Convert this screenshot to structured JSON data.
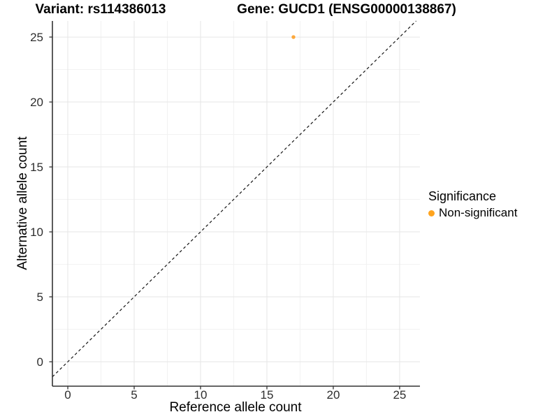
{
  "chart_data": {
    "type": "scatter",
    "titles": {
      "variant": "Variant: rs114386013",
      "gene": "Gene: GUCD1 (ENSG00000138867)"
    },
    "xlabel": "Reference allele count",
    "ylabel": "Alternative allele count",
    "x_ticks": [
      0,
      5,
      10,
      15,
      20,
      25
    ],
    "y_ticks": [
      0,
      5,
      10,
      15,
      20,
      25
    ],
    "x_minor_ticks": [
      2.5,
      7.5,
      12.5,
      17.5,
      22.5
    ],
    "y_minor_ticks": [
      2.5,
      7.5,
      12.5,
      17.5,
      22.5
    ],
    "xlim": [
      -1.16,
      26.53
    ],
    "ylim": [
      -1.88,
      26.24
    ],
    "grid": "major-and-minor",
    "points": [
      {
        "x": 17,
        "y": 25,
        "series": "Non-significant"
      }
    ],
    "reference_line": {
      "kind": "identity-diagonal",
      "style": "dashed"
    },
    "legend": {
      "title": "Significance",
      "position": "right",
      "items": [
        {
          "label": "Non-significant",
          "color": "#FFA41F"
        }
      ]
    },
    "colors": {
      "point": "#FDA433",
      "axis_line": "#333333",
      "tick_mark": "#333333",
      "grid_major": "#E6E6E6",
      "grid_minor": "#F2F2F2",
      "dashed_line": "#141414",
      "background": "#FFFFFF"
    }
  }
}
